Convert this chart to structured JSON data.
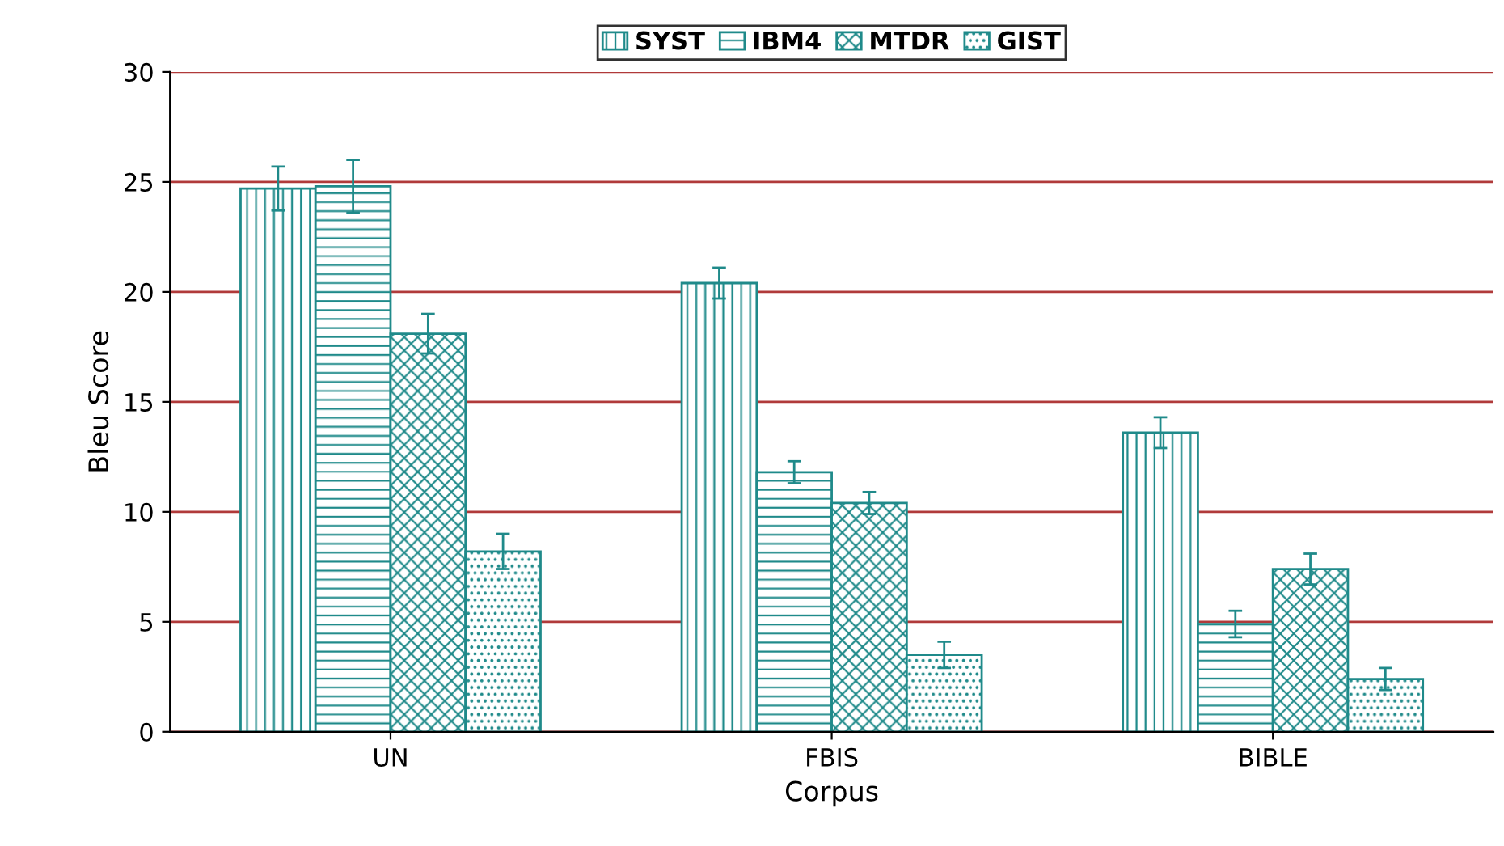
{
  "chart_data": {
    "type": "bar",
    "xlabel": "Corpus",
    "ylabel": "Bleu Score",
    "categories": [
      "UN",
      "FBIS",
      "BIBLE"
    ],
    "series": [
      {
        "name": "SYST",
        "color": "#1f8a8a",
        "values": [
          24.7,
          20.4,
          13.6
        ],
        "errors": [
          1.0,
          0.7,
          0.7
        ]
      },
      {
        "name": "IBM4",
        "color": "#1f8a8a",
        "values": [
          24.8,
          11.8,
          4.9
        ],
        "errors": [
          1.2,
          0.5,
          0.6
        ]
      },
      {
        "name": "MTDR",
        "color": "#1f8a8a",
        "values": [
          18.1,
          10.4,
          7.4
        ],
        "errors": [
          0.9,
          0.5,
          0.7
        ]
      },
      {
        "name": "GIST",
        "color": "#1f8a8a",
        "values": [
          8.2,
          3.5,
          2.4
        ],
        "errors": [
          0.8,
          0.6,
          0.5
        ]
      }
    ],
    "ylim": [
      0,
      30
    ],
    "yticks": [
      0,
      5,
      10,
      15,
      20,
      25,
      30
    ],
    "grid": "y",
    "legend": "top"
  }
}
